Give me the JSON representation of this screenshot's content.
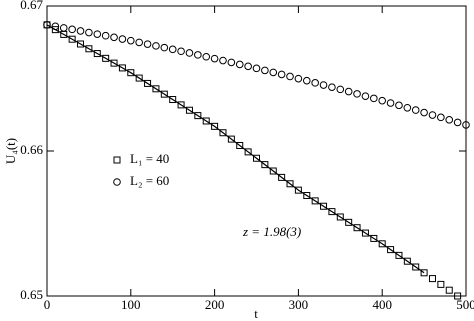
{
  "chart_data": {
    "type": "scatter",
    "xlabel": "t",
    "ylabel": "U₄(t)",
    "xlim": [
      0,
      500
    ],
    "ylim": [
      0.65,
      0.67
    ],
    "xticks": [
      0,
      100,
      200,
      300,
      400,
      500
    ],
    "yticks": [
      0.65,
      0.66,
      0.67
    ],
    "annotation": "z = 1.98(3)",
    "series": [
      {
        "name": "L₁ = 40",
        "marker": "square",
        "color": "#000000",
        "x": [
          0,
          10,
          20,
          30,
          40,
          50,
          60,
          70,
          80,
          90,
          100,
          110,
          120,
          130,
          140,
          150,
          160,
          170,
          180,
          190,
          200,
          210,
          220,
          230,
          240,
          250,
          260,
          270,
          280,
          290,
          300,
          310,
          320,
          330,
          340,
          350,
          360,
          370,
          380,
          390,
          400,
          410,
          420,
          430,
          440,
          450,
          460,
          470,
          480,
          490
        ],
        "values": [
          0.6687,
          0.66837,
          0.66804,
          0.66771,
          0.66738,
          0.66705,
          0.66672,
          0.66639,
          0.66606,
          0.66573,
          0.6654,
          0.66503,
          0.66466,
          0.66429,
          0.66392,
          0.66355,
          0.66318,
          0.66281,
          0.66244,
          0.66207,
          0.6617,
          0.66126,
          0.66082,
          0.66038,
          0.65994,
          0.6595,
          0.65906,
          0.65862,
          0.65818,
          0.65774,
          0.6573,
          0.65693,
          0.65656,
          0.65619,
          0.65582,
          0.65545,
          0.65508,
          0.65471,
          0.65434,
          0.65397,
          0.6536,
          0.6532,
          0.6528,
          0.6524,
          0.652,
          0.6516,
          0.6512,
          0.6508,
          0.6504,
          0.65
        ]
      },
      {
        "name": "L₂ = 60",
        "marker": "circle",
        "color": "#000000",
        "x": [
          0,
          10,
          20,
          30,
          40,
          50,
          60,
          70,
          80,
          90,
          100,
          110,
          120,
          130,
          140,
          150,
          160,
          170,
          180,
          190,
          200,
          210,
          220,
          230,
          240,
          250,
          260,
          270,
          280,
          290,
          300,
          310,
          320,
          330,
          340,
          350,
          360,
          370,
          380,
          390,
          400,
          410,
          420,
          430,
          440,
          450,
          460,
          470,
          480,
          490,
          500
        ],
        "values": [
          0.6687,
          0.6686,
          0.66849,
          0.66839,
          0.66828,
          0.66817,
          0.66806,
          0.66795,
          0.66784,
          0.66772,
          0.66761,
          0.66749,
          0.66737,
          0.66725,
          0.66713,
          0.66701,
          0.66688,
          0.66676,
          0.66663,
          0.6665,
          0.66637,
          0.66624,
          0.66611,
          0.66597,
          0.66584,
          0.6657,
          0.66556,
          0.66542,
          0.66528,
          0.66514,
          0.66499,
          0.66485,
          0.6647,
          0.66455,
          0.6644,
          0.66425,
          0.6641,
          0.66394,
          0.66378,
          0.66363,
          0.66347,
          0.66331,
          0.66315,
          0.66298,
          0.66282,
          0.66265,
          0.66248,
          0.66232,
          0.66215,
          0.66197,
          0.6618
        ]
      }
    ],
    "fit": {
      "color": "#000000",
      "x": [
        0,
        50,
        100,
        150,
        200,
        250,
        300,
        350,
        400,
        450
      ],
      "values": [
        0.6687,
        0.66705,
        0.6654,
        0.66355,
        0.6617,
        0.6595,
        0.6573,
        0.65545,
        0.6536,
        0.6516
      ]
    }
  }
}
